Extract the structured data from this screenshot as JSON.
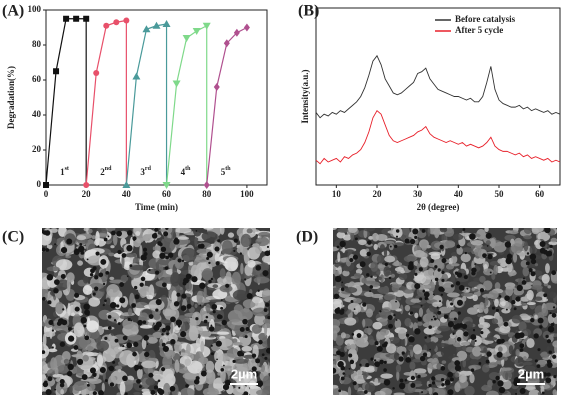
{
  "chart_data": [
    {
      "type": "line",
      "panel_label": "(A)",
      "x_label": "Time (min)",
      "y_label": "Degradation(%)",
      "xlim": [
        0,
        110
      ],
      "ylim": [
        0,
        100
      ],
      "xticks": [
        0,
        20,
        40,
        60,
        80,
        100
      ],
      "yticks": [
        0,
        20,
        40,
        60,
        80,
        100
      ],
      "series": [
        {
          "color": "#111111",
          "marker": "square",
          "x": [
            0,
            5,
            10,
            15,
            20
          ],
          "values": [
            0,
            65,
            95,
            95,
            95
          ]
        },
        {
          "color": "#e8506a",
          "marker": "circle",
          "x": [
            20,
            25,
            30,
            35,
            40
          ],
          "values": [
            0,
            64,
            91,
            93,
            94
          ]
        },
        {
          "color": "#4a9a9a",
          "marker": "triangle-up",
          "x": [
            40,
            45,
            50,
            55,
            60
          ],
          "values": [
            0,
            62,
            89,
            91,
            92
          ]
        },
        {
          "color": "#7fd98a",
          "marker": "triangle-down",
          "x": [
            60,
            65,
            70,
            75,
            80
          ],
          "values": [
            0,
            58,
            84,
            88,
            91
          ]
        },
        {
          "color": "#b0508f",
          "marker": "diamond",
          "x": [
            80,
            85,
            90,
            95,
            100
          ],
          "values": [
            0,
            56,
            81,
            87,
            90
          ]
        }
      ],
      "annotations": [
        {
          "base": "1",
          "sup": "st"
        },
        {
          "base": "2",
          "sup": "nd"
        },
        {
          "base": "3",
          "sup": "rd"
        },
        {
          "base": "4",
          "sup": "th"
        },
        {
          "base": "5",
          "sup": "th"
        }
      ]
    },
    {
      "type": "line",
      "panel_label": "(B)",
      "x_label": "2θ (degree)",
      "y_label": "Intensity(a.u.)",
      "xlim": [
        5,
        65
      ],
      "ylim": [
        0,
        100
      ],
      "xticks": [
        10,
        20,
        30,
        40,
        50,
        60
      ],
      "legend": "upper right",
      "x": [
        5,
        6,
        7,
        8,
        9,
        10,
        11,
        12,
        13,
        14,
        15,
        16,
        17,
        18,
        19,
        20,
        21,
        22,
        23,
        24,
        25,
        26,
        27,
        28,
        29,
        30,
        31,
        32,
        33,
        34,
        35,
        36,
        37,
        38,
        39,
        40,
        41,
        42,
        43,
        44,
        45,
        46,
        47,
        48,
        49,
        50,
        51,
        52,
        53,
        54,
        55,
        56,
        57,
        58,
        59,
        60,
        61,
        62,
        63,
        64,
        65
      ],
      "series": [
        {
          "name": "Before catalysis",
          "color": "#333333",
          "values": [
            41,
            38,
            40,
            39,
            41,
            40,
            42,
            41,
            43,
            45,
            47,
            50,
            55,
            62,
            70,
            73,
            68,
            60,
            56,
            52,
            51,
            52,
            54,
            56,
            58,
            63,
            64,
            66,
            60,
            57,
            54,
            53,
            52,
            51,
            50,
            50,
            49,
            48,
            49,
            47,
            47,
            50,
            58,
            67,
            54,
            48,
            46,
            45,
            44,
            44,
            45,
            43,
            44,
            42,
            43,
            42,
            41,
            42,
            40,
            41,
            40
          ]
        },
        {
          "name": "After 5 cycle",
          "color": "#e8202a",
          "values": [
            14,
            12,
            15,
            13,
            14,
            15,
            13,
            16,
            15,
            17,
            18,
            20,
            24,
            30,
            38,
            42,
            40,
            34,
            28,
            25,
            24,
            25,
            26,
            27,
            28,
            30,
            31,
            33,
            29,
            27,
            26,
            25,
            24,
            25,
            24,
            23,
            24,
            22,
            23,
            22,
            21,
            22,
            24,
            27,
            22,
            20,
            19,
            19,
            18,
            17,
            18,
            16,
            17,
            15,
            16,
            15,
            14,
            15,
            13,
            14,
            13
          ]
        }
      ]
    }
  ],
  "images": [
    {
      "panel_label": "(C)",
      "scale_bar": "2µm"
    },
    {
      "panel_label": "(D)",
      "scale_bar": "2µm"
    }
  ]
}
